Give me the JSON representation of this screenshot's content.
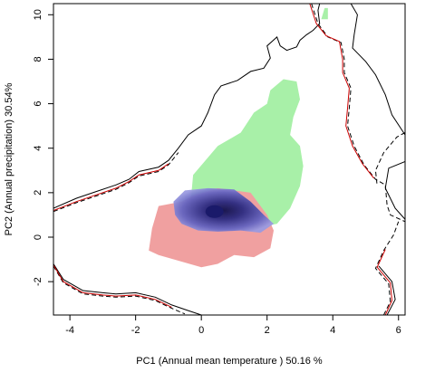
{
  "chart_data": {
    "type": "heatmap",
    "title": "",
    "xlabel": "PC1 (Annual mean temperature ) 50.16 %",
    "ylabel": "PC2 (Annual precipitation) 30.54%",
    "xlim": [
      -4.5,
      6.2
    ],
    "ylim": [
      -3.5,
      10.5
    ],
    "x_ticks": [
      -4,
      -2,
      0,
      2,
      4,
      6
    ],
    "y_ticks": [
      -2,
      0,
      2,
      4,
      6,
      8,
      10
    ],
    "x_tick_labels": [
      "-4",
      "-2",
      "0",
      "2",
      "4",
      "6"
    ],
    "y_tick_labels": [
      "-2",
      "0",
      "2",
      "4",
      "6",
      "8",
      "10"
    ],
    "grid": false,
    "colors": {
      "green": "#a8f0a8",
      "red": "#f0a0a0",
      "blue": "#5a5ab4",
      "blue_core": "#1a1a6a",
      "contour_solid": "#000000",
      "contour_dashed": "#000000",
      "contour_red": "#cc0000"
    },
    "series": [
      {
        "kind": "density_region",
        "color": "green",
        "polygon": [
          [
            -0.35,
            1.2
          ],
          [
            -0.25,
            2.8
          ],
          [
            0.5,
            4.1
          ],
          [
            1.2,
            4.7
          ],
          [
            1.6,
            5.6
          ],
          [
            2.0,
            6.0
          ],
          [
            2.1,
            6.6
          ],
          [
            2.5,
            7.1
          ],
          [
            2.9,
            7.0
          ],
          [
            3.0,
            6.2
          ],
          [
            2.8,
            5.4
          ],
          [
            2.7,
            4.6
          ],
          [
            3.0,
            4.1
          ],
          [
            3.1,
            3.2
          ],
          [
            3.0,
            2.3
          ],
          [
            2.7,
            1.3
          ],
          [
            2.3,
            0.6
          ],
          [
            1.5,
            0.4
          ],
          [
            0.4,
            0.8
          ],
          [
            -0.35,
            1.2
          ]
        ],
        "extra_patch": [
          [
            3.65,
            9.8
          ],
          [
            3.75,
            10.3
          ],
          [
            3.85,
            10.3
          ],
          [
            3.85,
            9.8
          ]
        ]
      },
      {
        "kind": "density_region",
        "color": "red",
        "polygon": [
          [
            -1.6,
            -0.6
          ],
          [
            -1.5,
            0.4
          ],
          [
            -1.3,
            1.4
          ],
          [
            -0.6,
            1.6
          ],
          [
            -0.2,
            1.9
          ],
          [
            0.5,
            2.2
          ],
          [
            1.5,
            2.0
          ],
          [
            2.0,
            1.0
          ],
          [
            2.2,
            0.3
          ],
          [
            2.1,
            -0.5
          ],
          [
            1.6,
            -0.9
          ],
          [
            1.0,
            -0.8
          ],
          [
            0.5,
            -1.2
          ],
          [
            0.0,
            -1.35
          ],
          [
            -0.6,
            -1.1
          ],
          [
            -1.3,
            -0.8
          ],
          [
            -1.6,
            -0.6
          ]
        ]
      },
      {
        "kind": "density_region",
        "color": "blue",
        "polygon": [
          [
            -0.8,
            1.0
          ],
          [
            -0.85,
            1.6
          ],
          [
            -0.5,
            2.1
          ],
          [
            0.2,
            2.2
          ],
          [
            1.0,
            2.15
          ],
          [
            1.5,
            1.6
          ],
          [
            1.9,
            1.0
          ],
          [
            2.2,
            0.6
          ],
          [
            1.8,
            0.2
          ],
          [
            1.2,
            0.3
          ],
          [
            0.5,
            0.25
          ],
          [
            -0.1,
            0.3
          ],
          [
            -0.6,
            0.6
          ],
          [
            -0.8,
            1.0
          ]
        ],
        "core": [
          0.4,
          1.15
        ]
      },
      {
        "kind": "contour_solid",
        "paths": [
          [
            [
              -4.5,
              1.3
            ],
            [
              -3.8,
              1.75
            ],
            [
              -3.2,
              2.05
            ],
            [
              -2.6,
              2.35
            ],
            [
              -2.2,
              2.6
            ],
            [
              -1.9,
              2.95
            ],
            [
              -1.3,
              3.15
            ],
            [
              -1.0,
              3.45
            ],
            [
              -0.7,
              4.0
            ],
            [
              -0.4,
              4.6
            ],
            [
              0.0,
              5.0
            ],
            [
              0.2,
              5.6
            ],
            [
              0.4,
              6.4
            ],
            [
              0.6,
              6.8
            ],
            [
              1.1,
              7.05
            ],
            [
              1.5,
              7.45
            ],
            [
              1.9,
              7.6
            ],
            [
              2.1,
              8.05
            ],
            [
              2.0,
              8.6
            ],
            [
              2.3,
              9.0
            ],
            [
              2.4,
              8.6
            ],
            [
              2.6,
              8.4
            ],
            [
              2.9,
              8.55
            ],
            [
              3.0,
              8.85
            ],
            [
              3.2,
              9.1
            ],
            [
              3.4,
              9.3
            ],
            [
              3.6,
              9.6
            ],
            [
              3.55,
              10.2
            ],
            [
              3.6,
              10.5
            ]
          ],
          [
            [
              4.55,
              10.5
            ],
            [
              4.75,
              10.0
            ],
            [
              4.65,
              9.1
            ],
            [
              4.6,
              8.5
            ],
            [
              5.0,
              7.9
            ],
            [
              5.3,
              7.3
            ],
            [
              5.6,
              6.4
            ],
            [
              5.8,
              5.5
            ],
            [
              6.2,
              4.6
            ]
          ],
          [
            [
              6.2,
              3.4
            ],
            [
              5.7,
              3.1
            ],
            [
              5.6,
              2.2
            ],
            [
              5.9,
              1.3
            ],
            [
              6.2,
              0.8
            ]
          ],
          [
            [
              -4.5,
              -1.2
            ],
            [
              -4.2,
              -1.9
            ],
            [
              -3.6,
              -2.4
            ],
            [
              -3.0,
              -2.5
            ],
            [
              -2.6,
              -2.55
            ],
            [
              -2.0,
              -2.5
            ],
            [
              -1.4,
              -2.7
            ],
            [
              -0.9,
              -3.05
            ],
            [
              -0.4,
              -3.3
            ],
            [
              0.0,
              -3.5
            ]
          ],
          [
            [
              5.65,
              -3.5
            ],
            [
              5.9,
              -2.8
            ],
            [
              5.8,
              -2.0
            ],
            [
              5.4,
              -1.3
            ]
          ]
        ]
      },
      {
        "kind": "contour_dashed",
        "paths": [
          [
            [
              -4.5,
              1.15
            ],
            [
              -3.8,
              1.55
            ],
            [
              -3.2,
              1.85
            ],
            [
              -2.6,
              2.15
            ],
            [
              -2.2,
              2.45
            ],
            [
              -1.9,
              2.75
            ],
            [
              -1.3,
              2.95
            ],
            [
              -1.0,
              3.25
            ],
            [
              -0.7,
              3.8
            ]
          ],
          [
            [
              3.35,
              10.5
            ],
            [
              3.55,
              9.6
            ],
            [
              3.85,
              9.0
            ],
            [
              4.25,
              8.75
            ],
            [
              4.35,
              8.0
            ],
            [
              4.35,
              7.4
            ],
            [
              4.55,
              6.7
            ],
            [
              4.5,
              5.8
            ],
            [
              4.45,
              5.0
            ],
            [
              4.65,
              4.1
            ],
            [
              4.95,
              3.25
            ],
            [
              5.3,
              2.6
            ],
            [
              5.6,
              2.35
            ],
            [
              5.65,
              1.45
            ],
            [
              5.75,
              1.0
            ],
            [
              6.2,
              0.7
            ]
          ],
          [
            [
              6.2,
              4.7
            ],
            [
              5.95,
              4.5
            ],
            [
              5.55,
              3.8
            ],
            [
              5.3,
              3.0
            ],
            [
              5.35,
              2.3
            ]
          ],
          [
            [
              -4.5,
              -1.3
            ],
            [
              -4.2,
              -2.05
            ],
            [
              -3.6,
              -2.55
            ],
            [
              -3.0,
              -2.65
            ],
            [
              -2.6,
              -2.7
            ],
            [
              -2.0,
              -2.65
            ],
            [
              -1.4,
              -2.85
            ],
            [
              -0.9,
              -3.2
            ],
            [
              -0.5,
              -3.45
            ]
          ],
          [
            [
              5.55,
              -3.5
            ],
            [
              5.75,
              -2.9
            ],
            [
              5.7,
              -2.1
            ],
            [
              5.3,
              -1.4
            ],
            [
              5.55,
              -0.6
            ],
            [
              5.85,
              0.1
            ],
            [
              6.0,
              0.7
            ]
          ]
        ]
      },
      {
        "kind": "contour_red",
        "paths": [
          [
            [
              -4.5,
              1.2
            ],
            [
              -3.8,
              1.6
            ],
            [
              -3.2,
              1.9
            ],
            [
              -2.6,
              2.2
            ],
            [
              -2.2,
              2.5
            ],
            [
              -1.9,
              2.8
            ],
            [
              -1.3,
              3.0
            ],
            [
              -1.0,
              3.3
            ]
          ],
          [
            [
              3.3,
              10.5
            ],
            [
              3.5,
              9.6
            ],
            [
              3.8,
              9.05
            ],
            [
              4.2,
              8.8
            ],
            [
              4.3,
              8.0
            ],
            [
              4.3,
              7.4
            ],
            [
              4.5,
              6.7
            ],
            [
              4.45,
              5.8
            ],
            [
              4.4,
              5.0
            ],
            [
              4.6,
              4.1
            ],
            [
              4.9,
              3.3
            ],
            [
              5.25,
              2.65
            ]
          ],
          [
            [
              -4.5,
              -1.25
            ],
            [
              -4.2,
              -2.0
            ],
            [
              -3.6,
              -2.5
            ],
            [
              -3.0,
              -2.6
            ],
            [
              -2.6,
              -2.65
            ],
            [
              -2.0,
              -2.6
            ],
            [
              -1.4,
              -2.8
            ],
            [
              -0.9,
              -3.15
            ]
          ],
          [
            [
              5.6,
              -3.5
            ],
            [
              5.8,
              -2.85
            ],
            [
              5.75,
              -2.05
            ],
            [
              5.35,
              -1.35
            ],
            [
              5.6,
              -0.55
            ]
          ]
        ]
      }
    ]
  }
}
